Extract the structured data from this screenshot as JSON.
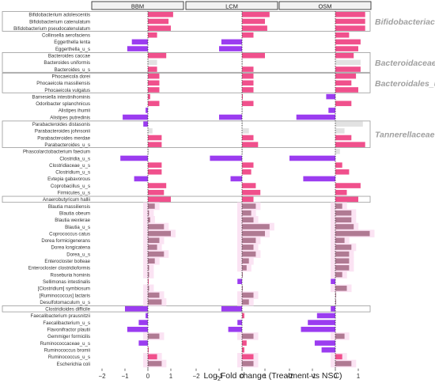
{
  "chart_data": {
    "type": "bar",
    "orientation": "horizontal",
    "xlabel_prefix": "Log",
    "xlabel_sub": "2",
    "xlabel_suffix": "Fold change (Treatment vs NSC)",
    "xticks": [
      -2,
      -1,
      0,
      1
    ],
    "xlim": [
      -2.4,
      1.6
    ],
    "panels": [
      "BBM",
      "LCM",
      "OSM"
    ],
    "colors": {
      "positive": "#f0508c",
      "negative": "#9b3cf0",
      "nonsig": "#e2e2e2",
      "muted": "#b07a93",
      "halo": "#fbe3f3"
    },
    "taxa": [
      "Bifidobacterium adolescentis",
      "Bifidobacterium catenulatum",
      "Bifidobacterium pseudocatenulatum",
      "Collinsella aerofaciens",
      "Eggerthella lenta",
      "Eggerthella_u_s",
      "Bacteroides caccae",
      "Bacteroides uniformis",
      "Bacteroides_u_s",
      "Phocaeicola dorei",
      "Phocaeicola massiliensis",
      "Phocaeicola vulgatus",
      "Barnesiella intestinihominis",
      "Odoribacter splanchnicus",
      "Alistipes ihumii",
      "Alistipes putredinis",
      "Parabacteroides distasonis",
      "Parabacteroides johnsonii",
      "Parabacteroides merdae",
      "Parabacteroides_u_s",
      "Phascolarctobacterium faecium",
      "Clostridia_u_s",
      "Clostridiaceae_u_s",
      "Clostridium_u_s",
      "Evtepia gabavorous",
      "Coprobacillus_u_s",
      "Firmicutes_u_s",
      "Anaerobutyricum hallii",
      "Blautia massiliensis",
      "Blautia obeum",
      "Blautia wexlerae",
      "Blautia_u_s",
      "Coprococcus catus",
      "Dorea formicigenerans",
      "Dorea longicatena",
      "Dorea_u_s",
      "Enterocloster bolteae",
      "Enterocloster clostridioformis",
      "Roseburia hominis",
      "Sellimonas intestinalis",
      "[Clostridium] symbiosum",
      "[Ruminococcus] lactaris",
      "Desulfotomaculum_u_s",
      "Clostridioides difficile",
      "Faecalibacterium prausnitzii",
      "Faecalibacterium_u_s",
      "Flavonifractor plautii",
      "Gemmiger formicilis",
      "Ruminococcaceae_u_s",
      "Ruminococcus bromii",
      "Ruminococcus_u_s",
      "Escherichia coli"
    ],
    "series": [
      {
        "values": [
          1.1,
          0.9,
          1.0,
          0.4,
          -0.7,
          -0.9,
          0.8,
          0.4,
          0.4,
          0.5,
          0.5,
          0.5,
          0.1,
          0.5,
          -0.1,
          -1.1,
          -0.2,
          0.2,
          0.6,
          0.6,
          0.05,
          -1.2,
          0.6,
          0.6,
          -0.6,
          0.8,
          0.7,
          1.0,
          0.3,
          0.05,
          0.1,
          0.7,
          1.0,
          0.5,
          0.4,
          0.7,
          0.3,
          0.05,
          0.05,
          0.0,
          0.05,
          0.5,
          0.6,
          -1.0,
          -0.1,
          -0.4,
          -0.9,
          0.5,
          -0.4,
          0.0,
          0.4,
          0.6
        ]
      },
      {
        "values": [
          1.2,
          1.0,
          1.1,
          0.5,
          -0.9,
          -1.0,
          1.0,
          0.0,
          0.5,
          0.5,
          0.5,
          0.5,
          0.0,
          0.5,
          0.0,
          -1.0,
          0.0,
          0.3,
          0.5,
          0.7,
          0.0,
          -1.4,
          0.5,
          0.4,
          -0.5,
          0.6,
          0.8,
          0.5,
          0.6,
          0.4,
          0.5,
          1.2,
          1.0,
          0.6,
          0.5,
          0.6,
          0.3,
          0.2,
          0.0,
          -0.2,
          0.0,
          0.5,
          0.3,
          -0.9,
          0.1,
          -0.2,
          -0.6,
          0.5,
          0.2,
          0.1,
          0.5,
          0.5
        ]
      },
      {
        "values": [
          1.3,
          1.3,
          1.3,
          0.6,
          1.1,
          1.0,
          0.8,
          1.1,
          1.1,
          0.9,
          0.7,
          1.0,
          -0.4,
          0.7,
          -0.3,
          -1.7,
          1.2,
          0.4,
          0.7,
          1.3,
          0.2,
          -2.0,
          0.3,
          0.6,
          -1.4,
          1.1,
          0.5,
          1.0,
          0.3,
          0.7,
          0.7,
          0.8,
          1.5,
          0.4,
          0.7,
          0.6,
          0.6,
          0.6,
          0.3,
          -0.2,
          0.5,
          0.0,
          0.0,
          -0.2,
          -0.8,
          -1.2,
          -1.5,
          0.4,
          -0.9,
          -0.6,
          0.3,
          0.7
        ]
      }
    ],
    "family_labels": [
      "Bifidobacteriaceae",
      "Bacteroidaceae",
      "Bacteroidales_u_f",
      "Tannerellaceae"
    ]
  }
}
